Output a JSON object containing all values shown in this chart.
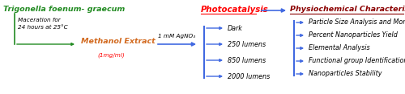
{
  "bg_color": "#ffffff",
  "arrow_color": "#4169E1",
  "green_color": "#228B22",
  "orange_color": "#D2691E",
  "red_color": "#FF0000",
  "dark_red_color": "#8B0000",
  "title1": "Trigonella foenum- graecum",
  "subtitle1a": "Maceration for",
  "subtitle1b": "24 hours at 25°C",
  "label1": "Methanol Extract",
  "label1b": "(1mg/ml)",
  "arrow_label": "1 mM AgNO₃",
  "center_label": "Photocatalysis",
  "light_items": [
    "Dark",
    "250 lumens",
    "850 lumens",
    "2000 lumens"
  ],
  "right_title": "Physiochemical Characterization",
  "right_items": [
    "Particle Size Analysis and Morphology",
    "Percent Nanoparticles Yield",
    "Elemental Analysis",
    "Functional group Identification",
    "Nanoparticles Stability"
  ],
  "figw": 5.0,
  "figh": 1.17,
  "dpi": 100
}
